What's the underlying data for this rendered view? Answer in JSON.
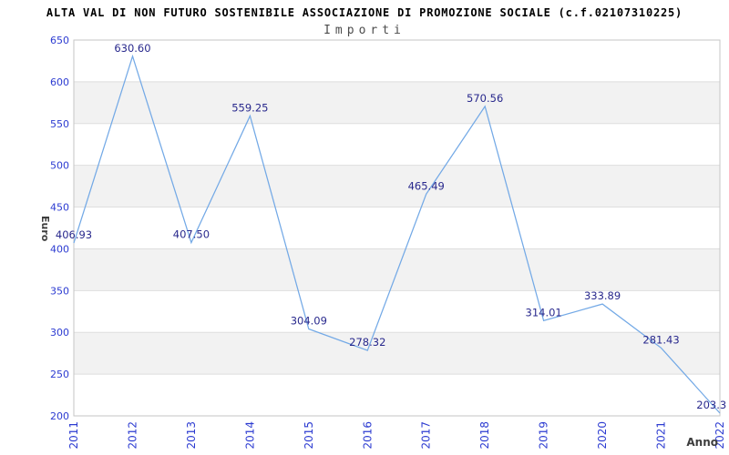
{
  "header": {
    "title": "ALTA VAL DI NON FUTURO SOSTENIBILE ASSOCIAZIONE DI PROMOZIONE SOCIALE (c.f.02107310225)",
    "subtitle": "Importi"
  },
  "chart_data": {
    "type": "line",
    "categories": [
      "2011",
      "2012",
      "2013",
      "2014",
      "2015",
      "2016",
      "2017",
      "2018",
      "2019",
      "2020",
      "2021",
      "2022"
    ],
    "values": [
      406.93,
      630.6,
      407.5,
      559.25,
      304.09,
      278.32,
      465.49,
      570.56,
      314.01,
      333.89,
      281.43,
      203.3
    ],
    "point_labels": [
      "406.93",
      "630.60",
      "407.50",
      "559.25",
      "304.09",
      "278.32",
      "465.49",
      "570.56",
      "314.01",
      "333.89",
      "281.43",
      "203.3"
    ],
    "title": "Importi",
    "xlabel": "Anno",
    "ylabel": "Euro",
    "ylim": [
      200,
      650
    ],
    "ytick_step": 50,
    "yticks": [
      200,
      250,
      300,
      350,
      400,
      450,
      500,
      550,
      600,
      650
    ],
    "grid": true,
    "bands": [
      [
        550,
        600
      ],
      [
        450,
        500
      ],
      [
        350,
        400
      ],
      [
        250,
        300
      ]
    ],
    "legend_position": "none"
  },
  "colors": {
    "title": "#000000",
    "subtitle": "#4b4b4b",
    "axis_title": "#3d3d3d",
    "tick_label": "#2c3bd1",
    "value_label": "#29298d",
    "line": "#73a9e6",
    "band": "#f2f2f2",
    "gridline": "#dedede",
    "border": "#c6c6c6",
    "background": "#ffffff"
  }
}
